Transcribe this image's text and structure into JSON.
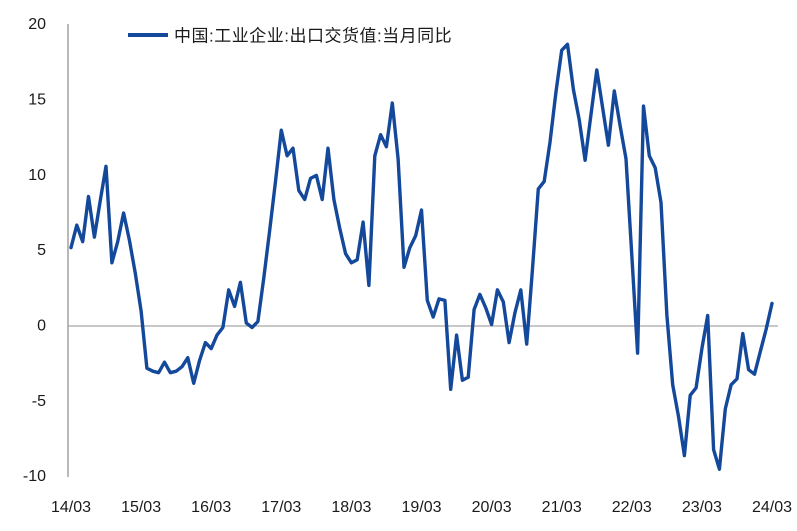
{
  "chart_data": {
    "type": "line",
    "title": "",
    "legend_label": "中国:工业企业:出口交货值:当月同比",
    "legend_position": "top-inside-left",
    "line_color": "#13489B",
    "axis_color": "#9b9b9b",
    "zero_line_color": "#a8a8a8",
    "text_color": "#1a1a1a",
    "grid": "zero-line-only",
    "ylim": [
      -10,
      20
    ],
    "y_ticks": [
      20,
      15,
      10,
      5,
      0,
      -5,
      -10
    ],
    "x_tick_labels": [
      "14/03",
      "15/03",
      "16/03",
      "17/03",
      "18/03",
      "19/03",
      "20/03",
      "21/03",
      "22/03",
      "23/03",
      "24/03"
    ],
    "x_start_month": "2014-03",
    "x_frequency": "monthly",
    "values": [
      5.2,
      6.7,
      5.6,
      8.6,
      5.9,
      8.3,
      10.6,
      4.2,
      5.6,
      7.5,
      5.7,
      3.5,
      1.0,
      -2.8,
      -3.0,
      -3.1,
      -2.4,
      -3.1,
      -3.0,
      -2.7,
      -2.1,
      -3.8,
      -2.3,
      -1.1,
      -1.5,
      -0.6,
      -0.1,
      2.4,
      1.3,
      2.9,
      0.2,
      -0.1,
      0.3,
      3.2,
      6.3,
      9.6,
      13.0,
      11.3,
      11.8,
      9.0,
      8.4,
      9.8,
      10.0,
      8.4,
      11.8,
      8.4,
      6.5,
      4.8,
      4.2,
      4.4,
      6.9,
      2.7,
      11.3,
      12.7,
      11.9,
      14.8,
      11.1,
      3.9,
      5.2,
      6.0,
      7.7,
      1.7,
      0.6,
      1.8,
      1.7,
      -4.2,
      -0.6,
      -3.6,
      -3.4,
      1.1,
      2.1,
      1.2,
      0.1,
      2.4,
      1.6,
      -1.1,
      0.9,
      2.4,
      -1.2,
      3.8,
      9.1,
      9.6,
      12.2,
      15.5,
      18.3,
      18.7,
      15.7,
      13.7,
      11.0,
      14.0,
      17.0,
      14.5,
      12.0,
      15.6,
      13.3,
      11.1,
      4.7,
      -1.8,
      14.6,
      11.3,
      10.5,
      8.2,
      0.7,
      -3.9,
      -6.0,
      -8.6,
      -4.6,
      -4.1,
      -1.5,
      0.7,
      -8.2,
      -9.5,
      -5.5,
      -3.9,
      -3.5,
      -0.5,
      -2.9,
      -3.2,
      -1.7,
      -0.2,
      1.5
    ]
  }
}
